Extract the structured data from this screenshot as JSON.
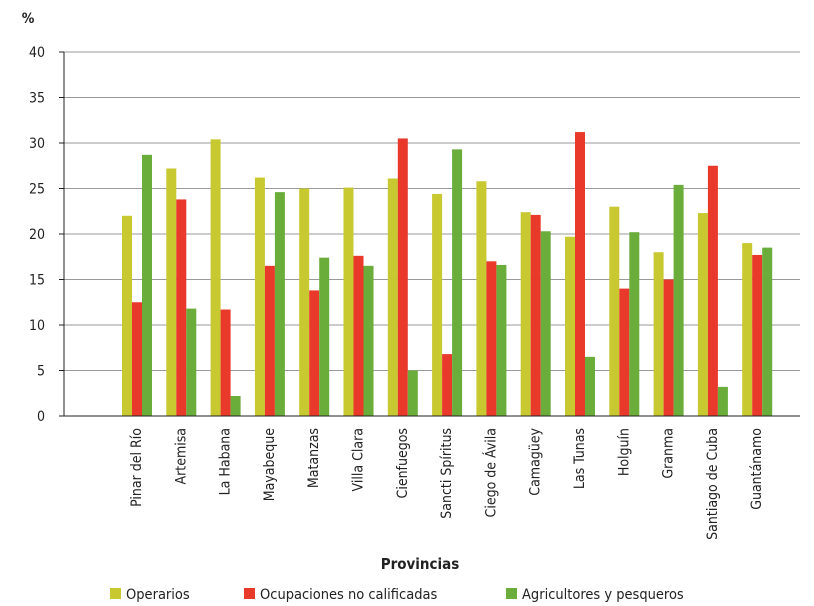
{
  "chart_data": {
    "type": "bar",
    "ylabel": "%",
    "xlabel": "Provincias",
    "ylim": [
      0,
      40
    ],
    "yticks": [
      0,
      5,
      10,
      15,
      20,
      25,
      30,
      35,
      40
    ],
    "grid": true,
    "legend_position": "bottom",
    "categories": [
      "Pinar del Río",
      "Artemisa",
      "La Habana",
      "Mayabeque",
      "Matanzas",
      "Villa Clara",
      "Cienfuegos",
      "Sancti Spíritus",
      "Ciego de Ávila",
      "Camagüey",
      "Las Tunas",
      "Holguín",
      "Granma",
      "Santiago de Cuba",
      "Guantánamo"
    ],
    "series": [
      {
        "name": "Operarios",
        "color": "#c8c831",
        "values": [
          22.0,
          27.2,
          30.4,
          26.2,
          25.0,
          25.1,
          26.1,
          24.4,
          25.8,
          22.4,
          19.7,
          23.0,
          18.0,
          22.3,
          19.0
        ]
      },
      {
        "name": "Ocupaciones no calificadas",
        "color": "#e8392b",
        "values": [
          12.5,
          23.8,
          11.7,
          16.5,
          13.8,
          17.6,
          30.5,
          6.8,
          17.0,
          22.1,
          31.2,
          14.0,
          15.0,
          27.5,
          17.7
        ]
      },
      {
        "name": "Agricultores y pesqueros",
        "color": "#6aad3b",
        "values": [
          28.7,
          11.8,
          2.2,
          24.6,
          17.4,
          16.5,
          5.0,
          29.3,
          16.6,
          20.3,
          6.5,
          20.2,
          25.4,
          3.2,
          18.5
        ]
      }
    ]
  }
}
